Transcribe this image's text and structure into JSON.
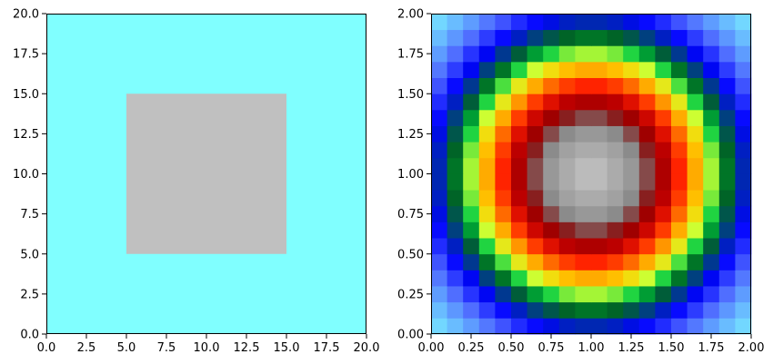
{
  "chart_data": [
    {
      "type": "heatmap",
      "title": "",
      "xlabel": "",
      "ylabel": "",
      "xlim": [
        0,
        20
      ],
      "ylim": [
        0,
        20
      ],
      "xticks": [
        "0.0",
        "2.5",
        "5.0",
        "7.5",
        "10.0",
        "12.5",
        "15.0",
        "17.5",
        "20.0"
      ],
      "yticks": [
        "0.0",
        "2.5",
        "5.0",
        "7.5",
        "10.0",
        "12.5",
        "15.0",
        "17.5",
        "20.0"
      ],
      "grid": false,
      "background_color": "#80ffff",
      "regions": [
        {
          "x": [
            5,
            15
          ],
          "y": [
            5,
            15
          ],
          "color": "#c0c0c0"
        }
      ]
    },
    {
      "type": "heatmap",
      "title": "",
      "xlabel": "",
      "ylabel": "",
      "xlim": [
        0,
        2
      ],
      "ylim": [
        0,
        2
      ],
      "xticks": [
        "0.00",
        "0.25",
        "0.50",
        "0.75",
        "1.00",
        "1.25",
        "1.50",
        "1.75",
        "2.00"
      ],
      "yticks": [
        "0.00",
        "0.25",
        "0.50",
        "0.75",
        "1.00",
        "1.25",
        "1.50",
        "1.75",
        "2.00"
      ],
      "grid": false,
      "grid_cells": [
        20,
        20
      ],
      "field": "radial distance from center (1, 1)",
      "colormap": [
        {
          "r": 0.0,
          "color": "#c8c8c8"
        },
        {
          "r": 0.25,
          "color": "#9a9a9a"
        },
        {
          "r": 0.32,
          "color": "#808080"
        },
        {
          "r": 0.4,
          "color": "#8b0000"
        },
        {
          "r": 0.48,
          "color": "#c00000"
        },
        {
          "r": 0.55,
          "color": "#ff2000"
        },
        {
          "r": 0.62,
          "color": "#ff8000"
        },
        {
          "r": 0.68,
          "color": "#ffd000"
        },
        {
          "r": 0.74,
          "color": "#ccff33"
        },
        {
          "r": 0.8,
          "color": "#00cc44"
        },
        {
          "r": 0.86,
          "color": "#006622"
        },
        {
          "r": 0.92,
          "color": "#004080"
        },
        {
          "r": 1.0,
          "color": "#0000ff"
        },
        {
          "r": 1.12,
          "color": "#4d66ff"
        },
        {
          "r": 1.25,
          "color": "#66b3ff"
        },
        {
          "r": 1.45,
          "color": "#80ffff"
        }
      ]
    }
  ]
}
